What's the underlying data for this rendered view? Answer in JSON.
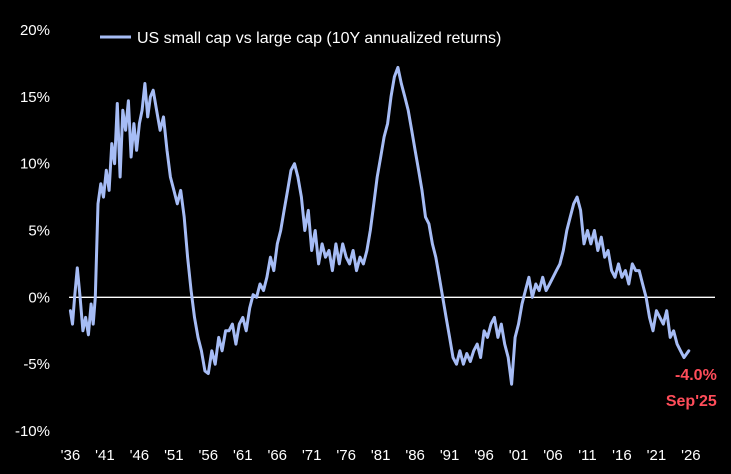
{
  "chart_data": {
    "type": "line",
    "legend_position": "top-left",
    "grid": false,
    "colors": {
      "background": "#000000",
      "series": "#a6bcf5",
      "zero_line": "#ffffff",
      "text": "#ffffff",
      "annotation": "#ff4d5a"
    },
    "y_ticks": [
      "20%",
      "15%",
      "10%",
      "5%",
      "0%",
      "-5%",
      "-10%"
    ],
    "y_tick_values": [
      20,
      15,
      10,
      5,
      0,
      -5,
      -10
    ],
    "ylim": [
      -10,
      20
    ],
    "x_ticks": [
      "'36",
      "'41",
      "'46",
      "'51",
      "'56",
      "'61",
      "'66",
      "'71",
      "'76",
      "'81",
      "'86",
      "'91",
      "'96",
      "'01",
      "'06",
      "'11",
      "'16",
      "'21",
      "'26"
    ],
    "x_tick_values": [
      1936,
      1941,
      1946,
      1951,
      1956,
      1961,
      1966,
      1971,
      1976,
      1981,
      1986,
      1991,
      1996,
      2001,
      2006,
      2011,
      2016,
      2021,
      2026
    ],
    "xlim": [
      1935.5,
      2029.5
    ],
    "series": [
      {
        "name": "US small cap vs large cap (10Y annualized returns)",
        "x": [
          1936.0,
          1936.3,
          1936.6,
          1937.0,
          1937.4,
          1937.8,
          1938.2,
          1938.6,
          1939.0,
          1939.3,
          1939.6,
          1940.0,
          1940.4,
          1940.8,
          1941.2,
          1941.6,
          1942.0,
          1942.4,
          1942.8,
          1943.2,
          1943.6,
          1944.0,
          1944.4,
          1944.8,
          1945.2,
          1945.6,
          1946.0,
          1946.4,
          1946.8,
          1947.2,
          1947.6,
          1948.0,
          1948.5,
          1949.0,
          1949.5,
          1950.0,
          1950.5,
          1951.0,
          1951.5,
          1952.0,
          1952.5,
          1953.0,
          1953.5,
          1954.0,
          1954.5,
          1955.0,
          1955.5,
          1956.0,
          1956.5,
          1957.0,
          1957.5,
          1958.0,
          1958.5,
          1959.0,
          1959.5,
          1960.0,
          1960.5,
          1961.0,
          1961.5,
          1962.0,
          1962.5,
          1963.0,
          1963.5,
          1964.0,
          1964.5,
          1965.0,
          1965.5,
          1966.0,
          1966.5,
          1967.0,
          1967.5,
          1968.0,
          1968.5,
          1969.0,
          1969.5,
          1970.0,
          1970.5,
          1971.0,
          1971.5,
          1972.0,
          1972.5,
          1973.0,
          1973.5,
          1974.0,
          1974.5,
          1975.0,
          1975.5,
          1976.0,
          1976.5,
          1977.0,
          1977.5,
          1978.0,
          1978.5,
          1979.0,
          1979.5,
          1980.0,
          1980.5,
          1981.0,
          1981.5,
          1982.0,
          1982.5,
          1983.0,
          1983.5,
          1984.0,
          1984.5,
          1985.0,
          1985.5,
          1986.0,
          1986.5,
          1987.0,
          1987.5,
          1988.0,
          1988.5,
          1989.0,
          1989.5,
          1990.0,
          1990.5,
          1991.0,
          1991.5,
          1992.0,
          1992.5,
          1993.0,
          1993.5,
          1994.0,
          1994.5,
          1995.0,
          1995.5,
          1996.0,
          1996.5,
          1997.0,
          1997.5,
          1998.0,
          1998.5,
          1999.0,
          1999.5,
          2000.0,
          2000.5,
          2001.0,
          2001.5,
          2002.0,
          2002.5,
          2003.0,
          2003.5,
          2004.0,
          2004.5,
          2005.0,
          2005.5,
          2006.0,
          2006.5,
          2007.0,
          2007.5,
          2008.0,
          2008.5,
          2009.0,
          2009.5,
          2010.0,
          2010.5,
          2011.0,
          2011.5,
          2012.0,
          2012.5,
          2013.0,
          2013.5,
          2014.0,
          2014.5,
          2015.0,
          2015.5,
          2016.0,
          2016.5,
          2017.0,
          2017.5,
          2018.0,
          2018.5,
          2019.0,
          2019.5,
          2020.0,
          2020.5,
          2021.0,
          2021.5,
          2022.0,
          2022.5,
          2023.0,
          2023.5,
          2024.0,
          2024.5,
          2025.0,
          2025.7
        ],
        "y": [
          -1.0,
          -2.0,
          0.0,
          2.2,
          0.0,
          -2.5,
          -1.5,
          -2.8,
          -0.5,
          -2.0,
          0.0,
          7.0,
          8.5,
          7.5,
          9.5,
          8.0,
          11.5,
          10.0,
          14.5,
          9.0,
          14.0,
          12.5,
          14.7,
          10.5,
          13.0,
          11.0,
          13.0,
          14.0,
          16.0,
          13.5,
          15.0,
          15.5,
          14.0,
          12.5,
          13.5,
          11.0,
          9.0,
          8.0,
          7.0,
          8.0,
          6.0,
          3.0,
          0.5,
          -1.5,
          -3.0,
          -4.0,
          -5.5,
          -5.7,
          -4.0,
          -5.0,
          -3.0,
          -4.0,
          -2.5,
          -2.5,
          -2.0,
          -3.5,
          -2.0,
          -1.5,
          -2.5,
          -0.8,
          0.2,
          0.0,
          1.0,
          0.5,
          1.5,
          3.0,
          2.0,
          4.0,
          5.0,
          6.5,
          8.0,
          9.5,
          10.0,
          9.0,
          7.5,
          5.0,
          6.5,
          3.5,
          5.0,
          2.5,
          4.0,
          3.0,
          3.5,
          2.0,
          4.0,
          2.5,
          4.0,
          3.0,
          2.5,
          3.5,
          2.0,
          3.0,
          2.5,
          3.5,
          5.0,
          7.0,
          9.0,
          10.5,
          12.0,
          13.0,
          15.0,
          16.5,
          17.2,
          16.0,
          15.0,
          14.0,
          12.5,
          11.0,
          9.5,
          8.0,
          6.0,
          5.5,
          4.0,
          3.0,
          1.5,
          0.0,
          -1.5,
          -3.0,
          -4.5,
          -5.0,
          -4.0,
          -5.0,
          -4.2,
          -4.8,
          -4.0,
          -3.5,
          -4.5,
          -2.5,
          -3.0,
          -2.0,
          -1.5,
          -3.0,
          -2.0,
          -3.5,
          -4.5,
          -6.5,
          -3.0,
          -2.0,
          -0.5,
          0.5,
          1.5,
          0.0,
          1.0,
          0.5,
          1.5,
          0.5,
          1.0,
          1.5,
          2.0,
          2.5,
          3.5,
          5.0,
          6.0,
          7.0,
          7.5,
          6.5,
          4.0,
          5.0,
          4.0,
          5.0,
          3.5,
          4.5,
          3.0,
          3.5,
          2.0,
          1.5,
          2.5,
          1.5,
          2.0,
          1.0,
          2.5,
          2.0,
          2.0,
          1.0,
          0.0,
          -1.5,
          -2.5,
          -1.0,
          -1.5,
          -2.0,
          -1.0,
          -3.0,
          -2.5,
          -3.5,
          -4.0,
          -4.5,
          -4.0
        ]
      }
    ],
    "annotation": {
      "value_label": "-4.0%",
      "date_label": "Sep'25",
      "x": 2025.7,
      "y": -4.0
    }
  }
}
